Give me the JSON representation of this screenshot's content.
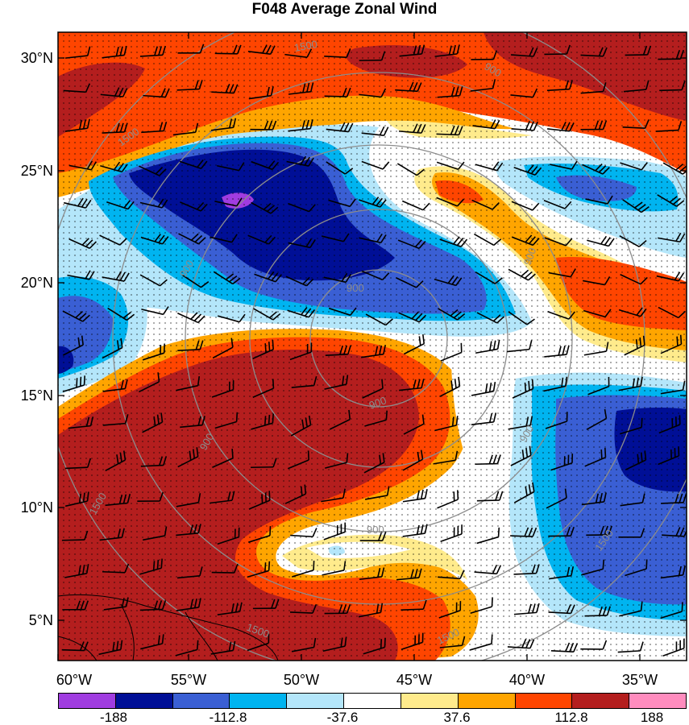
{
  "title": "F048 Average Zonal Wind",
  "latitude_labels": [
    "30°N",
    "25°N",
    "20°N",
    "15°N",
    "10°N",
    "5°N"
  ],
  "longitude_labels": [
    "60°W",
    "55°W",
    "50°W",
    "45°W",
    "40°W",
    "35°W"
  ],
  "contour_labels": [
    "1500",
    "1500",
    "900",
    "900",
    "900",
    "900",
    "1500",
    "900",
    "900",
    "900",
    "1500",
    "1500",
    "1500",
    "900"
  ],
  "colorbar": {
    "colors": [
      "#a03ce0",
      "#000f96",
      "#3a5fd4",
      "#00b4f0",
      "#b4e6fa",
      "#ffffff",
      "#ffeb8c",
      "#ffa500",
      "#ff4500",
      "#b41e1e",
      "#ff8cbe"
    ],
    "labels": [
      "-188",
      "-112.8",
      "-37.6",
      "37.6",
      "112.8",
      "188"
    ]
  },
  "palette": {
    "frame": "#000000",
    "contour_line": "#8c8c8c",
    "barb": "#000000"
  }
}
